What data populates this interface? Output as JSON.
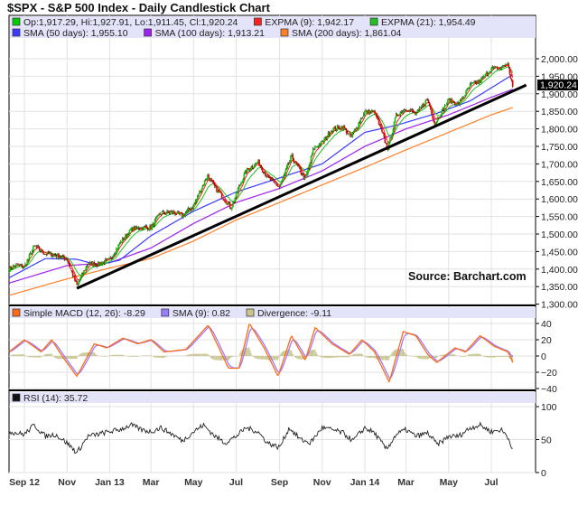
{
  "chart_data": {
    "type": "candlestick",
    "title": "$SPX - S&P 500 Index - Daily Candlestick Chart",
    "source": "Source:  Barchart.com",
    "last_price_label": "1,920.24",
    "legend": {
      "ohlc": "Op:1,917.29, Hi:1,927.91, Lo:1,911.45, Cl:1,920.24",
      "expma9": "EXPMA (9): 1,942.17",
      "expma21": "EXPMA (21): 1,954.49",
      "sma50": "SMA (50 days): 1,955.10",
      "sma100": "SMA (100 days): 1,913.21",
      "sma200": "SMA (200 days): 1,861.04",
      "macd": "Simple MACD (12, 26): -8.29",
      "macd_signal": "SMA (9): 0.82",
      "divergence": "Divergence: -9.11",
      "rsi": "RSI (14): 35.72"
    },
    "colors": {
      "up": "#00cc00",
      "down": "#ee0000",
      "expma9": "#ff2020",
      "expma21": "#20c020",
      "sma50": "#3b3bff",
      "sma100": "#a020f0",
      "sma200": "#ff7f27",
      "macd": "#ff6a13",
      "signal": "#9a7cff",
      "divergence": "#c8c48c",
      "rsi": "#222222",
      "trendline": "#000000",
      "legend_bg": "#e3e3fa"
    },
    "price_axis": {
      "ylim": [
        1300,
        2000
      ],
      "ticks": [
        "2,000.00",
        "1,950.00",
        "1,900.00",
        "1,850.00",
        "1,800.00",
        "1,750.00",
        "1,700.00",
        "1,650.00",
        "1,600.00",
        "1,550.00",
        "1,500.00",
        "1,450.00",
        "1,400.00",
        "1,350.00",
        "1,300.00"
      ]
    },
    "macd_axis": {
      "ylim": [
        -40,
        40
      ],
      "ticks": [
        "40",
        "20",
        "0",
        "-20",
        "-40"
      ]
    },
    "rsi_axis": {
      "ylim": [
        0,
        100
      ],
      "ticks": [
        "100",
        "50",
        "0"
      ]
    },
    "x_ticks": [
      {
        "label": "Sep 12",
        "date": "2012-09-01"
      },
      {
        "label": "Nov",
        "date": "2012-11-01"
      },
      {
        "label": "Jan 13",
        "date": "2013-01-01"
      },
      {
        "label": "Mar",
        "date": "2013-03-01"
      },
      {
        "label": "May",
        "date": "2013-05-01"
      },
      {
        "label": "Jul",
        "date": "2013-07-01"
      },
      {
        "label": "Sep",
        "date": "2013-09-01"
      },
      {
        "label": "Nov",
        "date": "2013-11-01"
      },
      {
        "label": "Jan 14",
        "date": "2014-01-01"
      },
      {
        "label": "Mar",
        "date": "2014-03-01"
      },
      {
        "label": "May",
        "date": "2014-05-01"
      },
      {
        "label": "Jul",
        "date": "2014-07-01"
      }
    ],
    "close": [
      [
        "2012-08-10",
        1400
      ],
      [
        "2012-08-20",
        1412
      ],
      [
        "2012-09-01",
        1406
      ],
      [
        "2012-09-15",
        1465
      ],
      [
        "2012-10-01",
        1444
      ],
      [
        "2012-10-15",
        1440
      ],
      [
        "2012-11-01",
        1428
      ],
      [
        "2012-11-15",
        1353
      ],
      [
        "2012-12-01",
        1416
      ],
      [
        "2012-12-15",
        1414
      ],
      [
        "2013-01-01",
        1426
      ],
      [
        "2013-01-15",
        1472
      ],
      [
        "2013-02-01",
        1513
      ],
      [
        "2013-02-15",
        1519
      ],
      [
        "2013-03-01",
        1518
      ],
      [
        "2013-03-15",
        1560
      ],
      [
        "2013-04-01",
        1562
      ],
      [
        "2013-04-15",
        1552
      ],
      [
        "2013-05-01",
        1582
      ],
      [
        "2013-05-21",
        1668
      ],
      [
        "2013-06-01",
        1631
      ],
      [
        "2013-06-24",
        1575
      ],
      [
        "2013-07-01",
        1614
      ],
      [
        "2013-07-15",
        1680
      ],
      [
        "2013-08-01",
        1706
      ],
      [
        "2013-08-15",
        1661
      ],
      [
        "2013-09-01",
        1633
      ],
      [
        "2013-09-18",
        1722
      ],
      [
        "2013-10-08",
        1655
      ],
      [
        "2013-10-20",
        1745
      ],
      [
        "2013-11-01",
        1761
      ],
      [
        "2013-11-15",
        1798
      ],
      [
        "2013-12-01",
        1806
      ],
      [
        "2013-12-12",
        1775
      ],
      [
        "2014-01-01",
        1848
      ],
      [
        "2014-01-15",
        1848
      ],
      [
        "2014-02-03",
        1742
      ],
      [
        "2014-02-15",
        1838
      ],
      [
        "2014-03-01",
        1859
      ],
      [
        "2014-03-15",
        1841
      ],
      [
        "2014-04-01",
        1885
      ],
      [
        "2014-04-11",
        1815
      ],
      [
        "2014-05-01",
        1883
      ],
      [
        "2014-05-15",
        1870
      ],
      [
        "2014-06-01",
        1924
      ],
      [
        "2014-06-15",
        1936
      ],
      [
        "2014-07-01",
        1973
      ],
      [
        "2014-07-15",
        1973
      ],
      [
        "2014-07-24",
        1988
      ],
      [
        "2014-08-01",
        1920.24
      ]
    ],
    "sma50": [
      [
        "2012-08-10",
        1375
      ],
      [
        "2012-10-01",
        1430
      ],
      [
        "2012-11-15",
        1428
      ],
      [
        "2012-12-15",
        1412
      ],
      [
        "2013-01-15",
        1425
      ],
      [
        "2013-03-01",
        1495
      ],
      [
        "2013-05-01",
        1565
      ],
      [
        "2013-07-01",
        1620
      ],
      [
        "2013-09-01",
        1660
      ],
      [
        "2013-11-01",
        1700
      ],
      [
        "2014-01-01",
        1790
      ],
      [
        "2014-02-15",
        1810
      ],
      [
        "2014-04-15",
        1845
      ],
      [
        "2014-06-01",
        1880
      ],
      [
        "2014-08-01",
        1955.1
      ]
    ],
    "sma100": [
      [
        "2012-08-10",
        1360
      ],
      [
        "2012-11-01",
        1410
      ],
      [
        "2013-01-01",
        1418
      ],
      [
        "2013-03-01",
        1460
      ],
      [
        "2013-05-01",
        1530
      ],
      [
        "2013-07-01",
        1590
      ],
      [
        "2013-09-01",
        1630
      ],
      [
        "2013-11-01",
        1680
      ],
      [
        "2014-01-01",
        1750
      ],
      [
        "2014-03-01",
        1800
      ],
      [
        "2014-05-01",
        1840
      ],
      [
        "2014-07-01",
        1890
      ],
      [
        "2014-08-01",
        1913.21
      ]
    ],
    "sma200": [
      [
        "2012-08-10",
        1325
      ],
      [
        "2012-11-01",
        1372
      ],
      [
        "2013-01-01",
        1403
      ],
      [
        "2013-03-01",
        1430
      ],
      [
        "2013-05-01",
        1480
      ],
      [
        "2013-07-01",
        1540
      ],
      [
        "2013-09-01",
        1590
      ],
      [
        "2013-11-01",
        1640
      ],
      [
        "2014-01-01",
        1690
      ],
      [
        "2014-03-01",
        1740
      ],
      [
        "2014-05-01",
        1790
      ],
      [
        "2014-07-01",
        1840
      ],
      [
        "2014-08-01",
        1861.04
      ]
    ],
    "trendline": [
      [
        "2012-11-15",
        1345
      ],
      [
        "2014-08-20",
        1925
      ]
    ],
    "macd": [
      [
        "2012-08-10",
        5
      ],
      [
        "2012-09-01",
        20
      ],
      [
        "2012-09-25",
        5
      ],
      [
        "2012-10-10",
        20
      ],
      [
        "2012-10-25",
        0
      ],
      [
        "2012-11-15",
        -25
      ],
      [
        "2012-12-10",
        15
      ],
      [
        "2012-12-28",
        10
      ],
      [
        "2013-01-20",
        22
      ],
      [
        "2013-02-10",
        15
      ],
      [
        "2013-03-01",
        20
      ],
      [
        "2013-03-20",
        5
      ],
      [
        "2013-04-20",
        8
      ],
      [
        "2013-05-22",
        38
      ],
      [
        "2013-06-20",
        -15
      ],
      [
        "2013-07-05",
        -15
      ],
      [
        "2013-07-20",
        40
      ],
      [
        "2013-08-10",
        10
      ],
      [
        "2013-08-30",
        -25
      ],
      [
        "2013-09-18",
        25
      ],
      [
        "2013-10-08",
        -5
      ],
      [
        "2013-10-22",
        35
      ],
      [
        "2013-11-15",
        15
      ],
      [
        "2013-12-10",
        2
      ],
      [
        "2013-12-28",
        20
      ],
      [
        "2014-01-15",
        5
      ],
      [
        "2014-02-05",
        -32
      ],
      [
        "2014-02-25",
        30
      ],
      [
        "2014-03-15",
        25
      ],
      [
        "2014-04-01",
        2
      ],
      [
        "2014-04-14",
        -8
      ],
      [
        "2014-05-10",
        10
      ],
      [
        "2014-05-25",
        5
      ],
      [
        "2014-06-15",
        25
      ],
      [
        "2014-07-05",
        12
      ],
      [
        "2014-07-25",
        5
      ],
      [
        "2014-08-01",
        -8.29
      ]
    ],
    "rsi": [
      [
        "2012-08-10",
        62
      ],
      [
        "2012-09-01",
        58
      ],
      [
        "2012-09-15",
        72
      ],
      [
        "2012-10-01",
        55
      ],
      [
        "2012-10-15",
        58
      ],
      [
        "2012-11-01",
        45
      ],
      [
        "2012-11-15",
        30
      ],
      [
        "2012-12-01",
        55
      ],
      [
        "2012-12-15",
        58
      ],
      [
        "2013-01-01",
        62
      ],
      [
        "2013-01-15",
        65
      ],
      [
        "2013-02-01",
        72
      ],
      [
        "2013-02-15",
        65
      ],
      [
        "2013-03-01",
        62
      ],
      [
        "2013-03-15",
        68
      ],
      [
        "2013-04-01",
        58
      ],
      [
        "2013-04-15",
        48
      ],
      [
        "2013-05-01",
        62
      ],
      [
        "2013-05-15",
        72
      ],
      [
        "2013-06-01",
        55
      ],
      [
        "2013-06-15",
        45
      ],
      [
        "2013-07-01",
        55
      ],
      [
        "2013-07-15",
        68
      ],
      [
        "2013-08-01",
        62
      ],
      [
        "2013-08-15",
        45
      ],
      [
        "2013-09-01",
        38
      ],
      [
        "2013-09-15",
        68
      ],
      [
        "2013-10-01",
        50
      ],
      [
        "2013-10-15",
        45
      ],
      [
        "2013-11-01",
        68
      ],
      [
        "2013-11-15",
        65
      ],
      [
        "2013-12-01",
        60
      ],
      [
        "2013-12-15",
        48
      ],
      [
        "2014-01-01",
        68
      ],
      [
        "2014-01-15",
        60
      ],
      [
        "2014-02-01",
        35
      ],
      [
        "2014-02-15",
        58
      ],
      [
        "2014-03-01",
        65
      ],
      [
        "2014-03-15",
        55
      ],
      [
        "2014-04-01",
        60
      ],
      [
        "2014-04-15",
        42
      ],
      [
        "2014-05-01",
        55
      ],
      [
        "2014-05-15",
        55
      ],
      [
        "2014-06-01",
        68
      ],
      [
        "2014-06-15",
        72
      ],
      [
        "2014-07-01",
        62
      ],
      [
        "2014-07-15",
        65
      ],
      [
        "2014-07-24",
        55
      ],
      [
        "2014-08-01",
        35.72
      ]
    ]
  }
}
